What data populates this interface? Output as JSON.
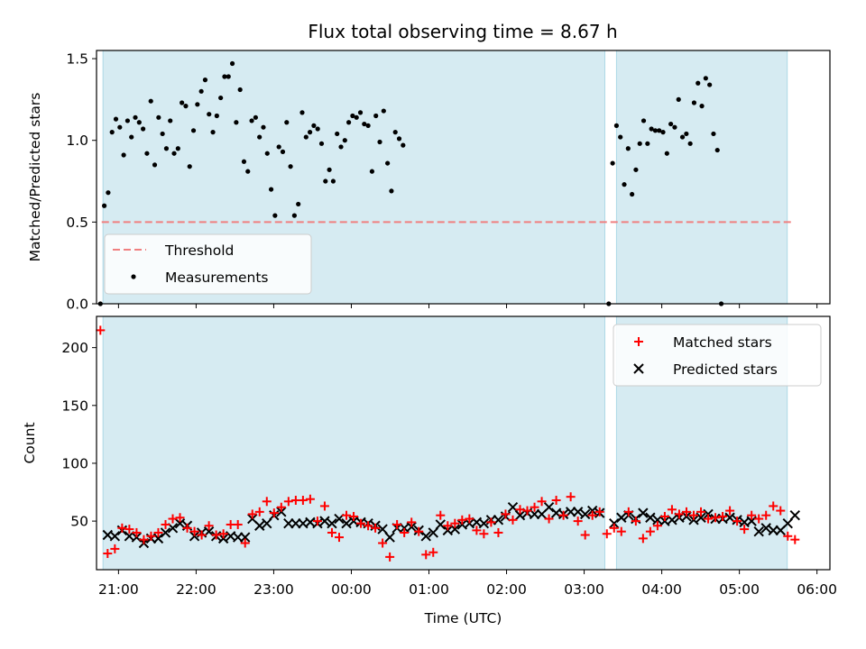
{
  "chart_data": [
    {
      "type": "scatter",
      "title": "Flux total observing time = 8.67 h",
      "xlabel": "",
      "ylabel": "Matched/Predicted stars",
      "ylim": [
        0,
        1.55
      ],
      "yticks": [
        0.0,
        0.5,
        1.0,
        1.5
      ],
      "ytick_labels": [
        "0.0",
        "0.5",
        "1.0",
        "1.5"
      ],
      "xlim": [
        "20:43",
        "06:10"
      ],
      "shaded_intervals": [
        [
          "20:48",
          "03:16"
        ],
        [
          "03:25",
          "05:37"
        ]
      ],
      "legend_position": "lower-left",
      "threshold": {
        "name": "Threshold",
        "value": 0.5,
        "x_range": [
          "20:47",
          "05:42"
        ],
        "color": "#f08080"
      },
      "series": [
        {
          "name": "Measurements",
          "color": "#000000",
          "points": [
            [
              "20:46",
              0.0
            ],
            [
              "20:49",
              0.6
            ],
            [
              "20:52",
              0.68
            ],
            [
              "20:55",
              1.05
            ],
            [
              "20:58",
              1.13
            ],
            [
              "21:01",
              1.08
            ],
            [
              "21:04",
              0.91
            ],
            [
              "21:07",
              1.12
            ],
            [
              "21:10",
              1.02
            ],
            [
              "21:13",
              1.14
            ],
            [
              "21:16",
              1.11
            ],
            [
              "21:19",
              1.07
            ],
            [
              "21:22",
              0.92
            ],
            [
              "21:25",
              1.24
            ],
            [
              "21:28",
              0.85
            ],
            [
              "21:31",
              1.14
            ],
            [
              "21:34",
              1.04
            ],
            [
              "21:37",
              0.95
            ],
            [
              "21:40",
              1.12
            ],
            [
              "21:43",
              0.92
            ],
            [
              "21:46",
              0.95
            ],
            [
              "21:49",
              1.23
            ],
            [
              "21:52",
              1.21
            ],
            [
              "21:55",
              0.84
            ],
            [
              "21:58",
              1.06
            ],
            [
              "22:01",
              1.22
            ],
            [
              "22:04",
              1.3
            ],
            [
              "22:07",
              1.37
            ],
            [
              "22:10",
              1.16
            ],
            [
              "22:13",
              1.05
            ],
            [
              "22:16",
              1.15
            ],
            [
              "22:19",
              1.26
            ],
            [
              "22:22",
              1.39
            ],
            [
              "22:25",
              1.39
            ],
            [
              "22:28",
              1.47
            ],
            [
              "22:31",
              1.11
            ],
            [
              "22:34",
              1.31
            ],
            [
              "22:37",
              0.87
            ],
            [
              "22:40",
              0.81
            ],
            [
              "22:43",
              1.12
            ],
            [
              "22:46",
              1.14
            ],
            [
              "22:49",
              1.02
            ],
            [
              "22:52",
              1.08
            ],
            [
              "22:55",
              0.92
            ],
            [
              "22:58",
              0.7
            ],
            [
              "23:01",
              0.54
            ],
            [
              "23:04",
              0.96
            ],
            [
              "23:07",
              0.93
            ],
            [
              "23:10",
              1.11
            ],
            [
              "23:13",
              0.84
            ],
            [
              "23:16",
              0.54
            ],
            [
              "23:19",
              0.61
            ],
            [
              "23:22",
              1.17
            ],
            [
              "23:25",
              1.02
            ],
            [
              "23:28",
              1.05
            ],
            [
              "23:31",
              1.09
            ],
            [
              "23:34",
              1.07
            ],
            [
              "23:37",
              0.98
            ],
            [
              "23:40",
              0.75
            ],
            [
              "23:43",
              0.82
            ],
            [
              "23:46",
              0.75
            ],
            [
              "23:49",
              1.04
            ],
            [
              "23:52",
              0.96
            ],
            [
              "23:55",
              1.0
            ],
            [
              "23:58",
              1.11
            ],
            [
              "00:01",
              1.15
            ],
            [
              "00:04",
              1.14
            ],
            [
              "00:07",
              1.17
            ],
            [
              "00:10",
              1.1
            ],
            [
              "00:13",
              1.09
            ],
            [
              "00:16",
              0.81
            ],
            [
              "00:19",
              1.15
            ],
            [
              "00:22",
              0.99
            ],
            [
              "00:25",
              1.18
            ],
            [
              "00:28",
              0.86
            ],
            [
              "00:31",
              0.69
            ],
            [
              "00:34",
              1.05
            ],
            [
              "00:37",
              1.01
            ],
            [
              "00:40",
              0.97
            ],
            [
              "03:19",
              0.0
            ],
            [
              "03:22",
              0.86
            ],
            [
              "03:25",
              1.09
            ],
            [
              "03:28",
              1.02
            ],
            [
              "03:31",
              0.73
            ],
            [
              "03:34",
              0.95
            ],
            [
              "03:37",
              0.67
            ],
            [
              "03:40",
              0.82
            ],
            [
              "03:43",
              0.98
            ],
            [
              "03:46",
              1.12
            ],
            [
              "03:49",
              0.98
            ],
            [
              "03:52",
              1.07
            ],
            [
              "03:55",
              1.06
            ],
            [
              "03:58",
              1.06
            ],
            [
              "04:01",
              1.05
            ],
            [
              "04:04",
              0.92
            ],
            [
              "04:07",
              1.1
            ],
            [
              "04:10",
              1.08
            ],
            [
              "04:13",
              1.25
            ],
            [
              "04:16",
              1.02
            ],
            [
              "04:19",
              1.04
            ],
            [
              "04:22",
              0.98
            ],
            [
              "04:25",
              1.23
            ],
            [
              "04:28",
              1.35
            ],
            [
              "04:31",
              1.21
            ],
            [
              "04:34",
              1.38
            ],
            [
              "04:37",
              1.34
            ],
            [
              "04:40",
              1.04
            ],
            [
              "04:43",
              0.94
            ],
            [
              "04:46",
              0.0
            ]
          ]
        }
      ]
    },
    {
      "type": "scatter",
      "title": "",
      "xlabel": "Time (UTC)",
      "ylabel": "Count",
      "ylim": [
        8,
        227
      ],
      "yticks": [
        50,
        100,
        150,
        200
      ],
      "ytick_labels": [
        "50",
        "100",
        "150",
        "200"
      ],
      "xlim": [
        "20:43",
        "06:10"
      ],
      "xticks": [
        "21:00",
        "22:00",
        "23:00",
        "00:00",
        "01:00",
        "02:00",
        "03:00",
        "04:00",
        "05:00",
        "06:00"
      ],
      "xtick_labels": [
        "21:00",
        "22:00",
        "23:00",
        "00:00",
        "01:00",
        "02:00",
        "03:00",
        "04:00",
        "05:00",
        "06:00"
      ],
      "shaded_intervals": [
        [
          "20:48",
          "03:16"
        ],
        [
          "03:25",
          "05:37"
        ]
      ],
      "legend_position": "upper-right",
      "series": [
        {
          "name": "Matched stars",
          "marker": "plus",
          "color": "#ff0000",
          "values": [
            215,
            22,
            26,
            44,
            43,
            40,
            34,
            37,
            40,
            47,
            52,
            53,
            44,
            41,
            38,
            46,
            38,
            39,
            47,
            47,
            31,
            56,
            58,
            67,
            57,
            62,
            67,
            68,
            68,
            69,
            50,
            63,
            40,
            36,
            55,
            54,
            48,
            46,
            44,
            31,
            19,
            47,
            40,
            49,
            41,
            21,
            23,
            55,
            46,
            48,
            51,
            52,
            42,
            39,
            49,
            40,
            56,
            51,
            60,
            59,
            62,
            67,
            52,
            68,
            55,
            71,
            50,
            38,
            55,
            58,
            39,
            44,
            41,
            58,
            50,
            35,
            41,
            46,
            54,
            60,
            56,
            58,
            55,
            58,
            52,
            53,
            54,
            59,
            50,
            43,
            55,
            52,
            55,
            63,
            59,
            37,
            34
          ]
        },
        {
          "name": "Predicted stars",
          "marker": "x",
          "color": "#000000",
          "values": [
            null,
            38,
            37,
            42,
            37,
            36,
            31,
            35,
            35,
            40,
            44,
            48,
            46,
            37,
            40,
            41,
            37,
            35,
            37,
            36,
            36,
            52,
            46,
            48,
            55,
            58,
            48,
            48,
            48,
            49,
            48,
            50,
            48,
            52,
            48,
            50,
            49,
            48,
            46,
            43,
            36,
            44,
            44,
            45,
            42,
            37,
            40,
            47,
            42,
            43,
            47,
            48,
            49,
            48,
            51,
            51,
            54,
            62,
            55,
            57,
            56,
            56,
            62,
            57,
            56,
            58,
            58,
            56,
            59,
            57,
            null,
            48,
            53,
            55,
            52,
            57,
            53,
            51,
            50,
            51,
            53,
            54,
            51,
            53,
            56,
            52,
            52,
            53,
            51,
            49,
            50,
            41,
            44,
            42,
            42,
            48,
            55
          ]
        }
      ]
    }
  ]
}
